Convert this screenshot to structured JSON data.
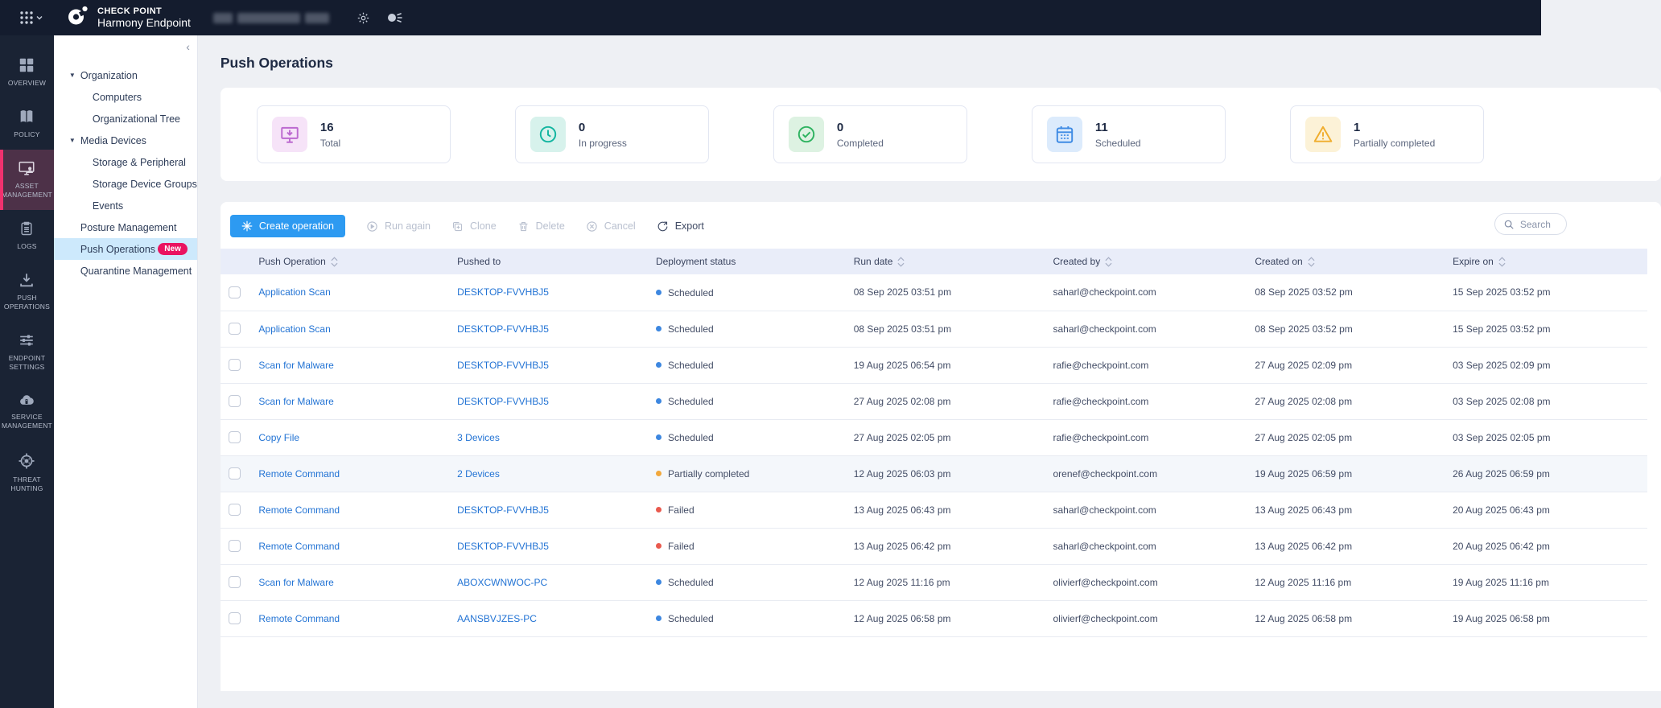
{
  "topbar": {
    "brand_top": "CHECK POINT",
    "brand_bottom": "Harmony Endpoint"
  },
  "nav_rail": [
    {
      "id": "overview",
      "label": "OVERVIEW",
      "active": false
    },
    {
      "id": "policy",
      "label": "POLICY",
      "active": false
    },
    {
      "id": "asset-management",
      "label": "ASSET MANAGEMENT",
      "active": true
    },
    {
      "id": "logs",
      "label": "LOGS",
      "active": false
    },
    {
      "id": "push-operations",
      "label": "PUSH OPERATIONS",
      "active": false
    },
    {
      "id": "endpoint-settings",
      "label": "ENDPOINT SETTINGS",
      "active": false
    },
    {
      "id": "service-management",
      "label": "SERVICE MANAGEMENT",
      "active": false
    },
    {
      "id": "threat-hunting",
      "label": "THREAT HUNTING",
      "active": false
    }
  ],
  "side_nav": {
    "collapse_glyph": "‹",
    "items": [
      {
        "label": "Organization",
        "indent": 0,
        "caret": true,
        "selected": false
      },
      {
        "label": "Computers",
        "indent": 1,
        "caret": false,
        "selected": false
      },
      {
        "label": "Organizational Tree",
        "indent": 1,
        "caret": false,
        "selected": false
      },
      {
        "label": "Media Devices",
        "indent": 0,
        "caret": true,
        "selected": false
      },
      {
        "label": "Storage & Peripheral",
        "indent": 1,
        "caret": false,
        "selected": false
      },
      {
        "label": "Storage Device Groups",
        "indent": 1,
        "caret": false,
        "selected": false
      },
      {
        "label": "Events",
        "indent": 1,
        "caret": false,
        "selected": false
      },
      {
        "label": "Posture Management",
        "indent": 0,
        "caret": false,
        "selected": false
      },
      {
        "label": "Push Operations",
        "indent": 0,
        "caret": false,
        "selected": true,
        "badge": "New"
      },
      {
        "label": "Quarantine Management",
        "indent": 0,
        "caret": false,
        "selected": false
      }
    ]
  },
  "page": {
    "title": "Push Operations"
  },
  "summary_cards": [
    {
      "id": "total",
      "value": "16",
      "label": "Total",
      "icon": "monitor-download",
      "tile_bg": "#f6e3f8",
      "icon_color": "#bc6ad0"
    },
    {
      "id": "in-progress",
      "value": "0",
      "label": "In progress",
      "icon": "clock",
      "tile_bg": "#d7f2ec",
      "icon_color": "#12b5a0"
    },
    {
      "id": "completed",
      "value": "0",
      "label": "Completed",
      "icon": "check-circle",
      "tile_bg": "#ddf2e2",
      "icon_color": "#2eb360"
    },
    {
      "id": "scheduled",
      "value": "11",
      "label": "Scheduled",
      "icon": "calendar",
      "tile_bg": "#dcebfc",
      "icon_color": "#3e8be4"
    },
    {
      "id": "partially-completed",
      "value": "1",
      "label": "Partially completed",
      "icon": "warning-triangle",
      "tile_bg": "#fcf2d7",
      "icon_color": "#f0ad2d"
    }
  ],
  "toolbar": {
    "create": "Create operation",
    "run_again": "Run again",
    "clone": "Clone",
    "delete": "Delete",
    "cancel": "Cancel",
    "export": "Export"
  },
  "search": {
    "placeholder": "Search"
  },
  "status_colors": {
    "Scheduled": "#3d87e0",
    "Partially completed": "#f2a83c",
    "Failed": "#e95a4e"
  },
  "table": {
    "columns": [
      {
        "label": "Push Operation",
        "sortable": true
      },
      {
        "label": "Pushed to",
        "sortable": false
      },
      {
        "label": "Deployment status",
        "sortable": false
      },
      {
        "label": "Run date",
        "sortable": true
      },
      {
        "label": "Created by",
        "sortable": true
      },
      {
        "label": "Created on",
        "sortable": true
      },
      {
        "label": "Expire on",
        "sortable": true
      }
    ],
    "rows": [
      {
        "operation": "Application Scan",
        "pushed_to": "DESKTOP-FVVHBJ5",
        "status": "Scheduled",
        "run_date": "08 Sep 2025 03:51 pm",
        "created_by": "saharl@checkpoint.com",
        "created_on": "08 Sep 2025 03:52 pm",
        "expire_on": "15 Sep 2025 03:52 pm",
        "highlighted": false
      },
      {
        "operation": "Application Scan",
        "pushed_to": "DESKTOP-FVVHBJ5",
        "status": "Scheduled",
        "run_date": "08 Sep 2025 03:51 pm",
        "created_by": "saharl@checkpoint.com",
        "created_on": "08 Sep 2025 03:52 pm",
        "expire_on": "15 Sep 2025 03:52 pm",
        "highlighted": false
      },
      {
        "operation": "Scan for Malware",
        "pushed_to": "DESKTOP-FVVHBJ5",
        "status": "Scheduled",
        "run_date": "19 Aug 2025 06:54 pm",
        "created_by": "rafie@checkpoint.com",
        "created_on": "27 Aug 2025 02:09 pm",
        "expire_on": "03 Sep 2025 02:09 pm",
        "highlighted": false
      },
      {
        "operation": "Scan for Malware",
        "pushed_to": "DESKTOP-FVVHBJ5",
        "status": "Scheduled",
        "run_date": "27 Aug 2025 02:08 pm",
        "created_by": "rafie@checkpoint.com",
        "created_on": "27 Aug 2025 02:08 pm",
        "expire_on": "03 Sep 2025 02:08 pm",
        "highlighted": false
      },
      {
        "operation": "Copy File",
        "pushed_to": "3 Devices",
        "status": "Scheduled",
        "run_date": "27 Aug 2025 02:05 pm",
        "created_by": "rafie@checkpoint.com",
        "created_on": "27 Aug 2025 02:05 pm",
        "expire_on": "03 Sep 2025 02:05 pm",
        "highlighted": false
      },
      {
        "operation": "Remote Command",
        "pushed_to": "2 Devices",
        "status": "Partially completed",
        "run_date": "12 Aug 2025 06:03 pm",
        "created_by": "orenef@checkpoint.com",
        "created_on": "19 Aug 2025 06:59 pm",
        "expire_on": "26 Aug 2025 06:59 pm",
        "highlighted": true
      },
      {
        "operation": "Remote Command",
        "pushed_to": "DESKTOP-FVVHBJ5",
        "status": "Failed",
        "run_date": "13 Aug 2025 06:43 pm",
        "created_by": "saharl@checkpoint.com",
        "created_on": "13 Aug 2025 06:43 pm",
        "expire_on": "20 Aug 2025 06:43 pm",
        "highlighted": false
      },
      {
        "operation": "Remote Command",
        "pushed_to": "DESKTOP-FVVHBJ5",
        "status": "Failed",
        "run_date": "13 Aug 2025 06:42 pm",
        "created_by": "saharl@checkpoint.com",
        "created_on": "13 Aug 2025 06:42 pm",
        "expire_on": "20 Aug 2025 06:42 pm",
        "highlighted": false
      },
      {
        "operation": "Scan for Malware",
        "pushed_to": "ABOXCWNWOC-PC",
        "status": "Scheduled",
        "run_date": "12 Aug 2025 11:16 pm",
        "created_by": "olivierf@checkpoint.com",
        "created_on": "12 Aug 2025 11:16 pm",
        "expire_on": "19 Aug 2025 11:16 pm",
        "highlighted": false
      },
      {
        "operation": "Remote Command",
        "pushed_to": "AANSBVJZES-PC",
        "status": "Scheduled",
        "run_date": "12 Aug 2025 06:58 pm",
        "created_by": "olivierf@checkpoint.com",
        "created_on": "12 Aug 2025 06:58 pm",
        "expire_on": "19 Aug 2025 06:58 pm",
        "highlighted": false
      }
    ]
  }
}
